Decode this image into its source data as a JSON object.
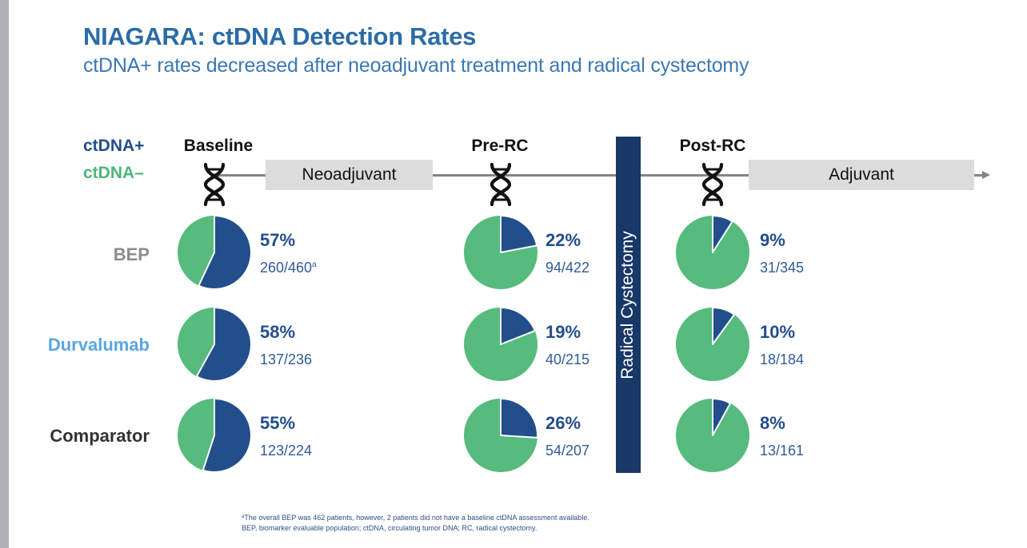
{
  "header": {
    "title": "NIAGARA: ctDNA Detection Rates",
    "subtitle": "ctDNA+ rates decreased after neoadjuvant treatment and radical cystectomy"
  },
  "legend": {
    "positive": "ctDNA+",
    "negative": "ctDNA–",
    "positive_color": "#234e8c",
    "negative_color": "#56bb7c"
  },
  "timeline": {
    "phases": [
      "Baseline",
      "Pre-RC",
      "Post-RC"
    ],
    "boxes": [
      "Neoadjuvant",
      "Adjuvant"
    ],
    "surgery_label": "Radical Cystectomy"
  },
  "rows": [
    {
      "label": "BEP",
      "color": "#8c8c8c"
    },
    {
      "label": "Durvalumab",
      "color": "#5aa6e0"
    },
    {
      "label": "Comparator",
      "color": "#333333"
    }
  ],
  "chart_data": {
    "type": "pie",
    "title": "NIAGARA: ctDNA Detection Rates",
    "subtitle": "ctDNA+ rates decreased after neoadjuvant treatment and radical cystectomy",
    "legend": [
      "ctDNA+",
      "ctDNA–"
    ],
    "timepoints": [
      "Baseline",
      "Pre-RC",
      "Post-RC"
    ],
    "groups": [
      "BEP",
      "Durvalumab",
      "Comparator"
    ],
    "series": [
      {
        "group": "BEP",
        "timepoint": "Baseline",
        "ctDNA_positive_pct": 57,
        "label": "57%",
        "fraction": "260/460",
        "footnote_marker": "a"
      },
      {
        "group": "BEP",
        "timepoint": "Pre-RC",
        "ctDNA_positive_pct": 22,
        "label": "22%",
        "fraction": "94/422"
      },
      {
        "group": "BEP",
        "timepoint": "Post-RC",
        "ctDNA_positive_pct": 9,
        "label": "9%",
        "fraction": "31/345"
      },
      {
        "group": "Durvalumab",
        "timepoint": "Baseline",
        "ctDNA_positive_pct": 58,
        "label": "58%",
        "fraction": "137/236"
      },
      {
        "group": "Durvalumab",
        "timepoint": "Pre-RC",
        "ctDNA_positive_pct": 19,
        "label": "19%",
        "fraction": "40/215"
      },
      {
        "group": "Durvalumab",
        "timepoint": "Post-RC",
        "ctDNA_positive_pct": 10,
        "label": "10%",
        "fraction": "18/184"
      },
      {
        "group": "Comparator",
        "timepoint": "Baseline",
        "ctDNA_positive_pct": 55,
        "label": "55%",
        "fraction": "123/224"
      },
      {
        "group": "Comparator",
        "timepoint": "Pre-RC",
        "ctDNA_positive_pct": 26,
        "label": "26%",
        "fraction": "54/207"
      },
      {
        "group": "Comparator",
        "timepoint": "Post-RC",
        "ctDNA_positive_pct": 8,
        "label": "8%",
        "fraction": "13/161"
      }
    ]
  },
  "footnote": {
    "marker": "a",
    "line1": "The overall BEP was 462 patients, however, 2 patients did not have a baseline ctDNA assessment available.",
    "line2": "BEP, biomarker evaluable population; ctDNA, circulating tumor DNA; RC, radical cystectomy."
  }
}
